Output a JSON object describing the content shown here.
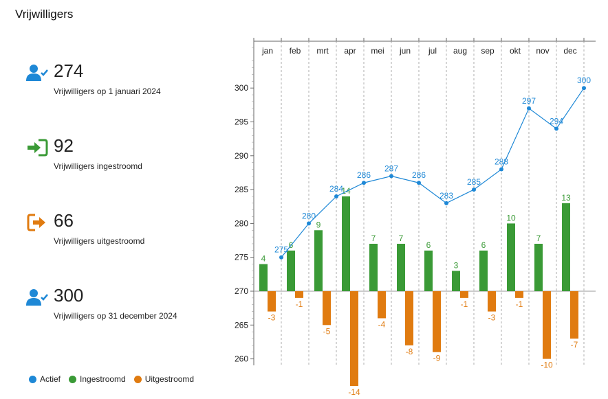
{
  "page": {
    "title": "Vrijwilligers"
  },
  "kpis": [
    {
      "value": "274",
      "label": "Vrijwilligers op 1 januari 2024",
      "icon": "user-check-icon",
      "color": "#1e88d6"
    },
    {
      "value": "92",
      "label": "Vrijwilligers ingestroomd",
      "icon": "sign-in-icon",
      "color": "#3a9a36"
    },
    {
      "value": "66",
      "label": "Vrijwilligers uitgestroomd",
      "icon": "sign-out-icon",
      "color": "#e07b10"
    },
    {
      "value": "300",
      "label": "Vrijwilligers op 31 december 2024",
      "icon": "user-check-icon",
      "color": "#1e88d6"
    }
  ],
  "legend": [
    {
      "label": "Actief",
      "color": "#1e88d6"
    },
    {
      "label": "Ingestroomd",
      "color": "#3a9a36"
    },
    {
      "label": "Uitgestroomd",
      "color": "#e07b10"
    }
  ],
  "chart_data": {
    "type": "bar+line",
    "categories": [
      "jan",
      "feb",
      "mrt",
      "apr",
      "mei",
      "jun",
      "jul",
      "aug",
      "sep",
      "okt",
      "nov",
      "dec"
    ],
    "series": [
      {
        "name": "Actief",
        "type": "line",
        "color": "#1e88d6",
        "values": [
          275,
          280,
          284,
          286,
          287,
          286,
          283,
          285,
          288,
          297,
          294,
          300
        ]
      },
      {
        "name": "Ingestroomd",
        "type": "bar",
        "color": "#3a9a36",
        "values": [
          4,
          6,
          9,
          14,
          7,
          7,
          6,
          3,
          6,
          10,
          7,
          13
        ]
      },
      {
        "name": "Uitgestroomd",
        "type": "bar",
        "color": "#e07b10",
        "values": [
          -3,
          -1,
          -5,
          -14,
          -4,
          -8,
          -9,
          -1,
          -3,
          -1,
          -10,
          -7
        ]
      }
    ],
    "yticks": [
      260,
      265,
      270,
      275,
      280,
      285,
      290,
      295,
      300
    ],
    "ylim": [
      258,
      306
    ],
    "bar_baseline": 270,
    "grid": "vertical dashed month separators",
    "legend_position": "bottom-left"
  }
}
